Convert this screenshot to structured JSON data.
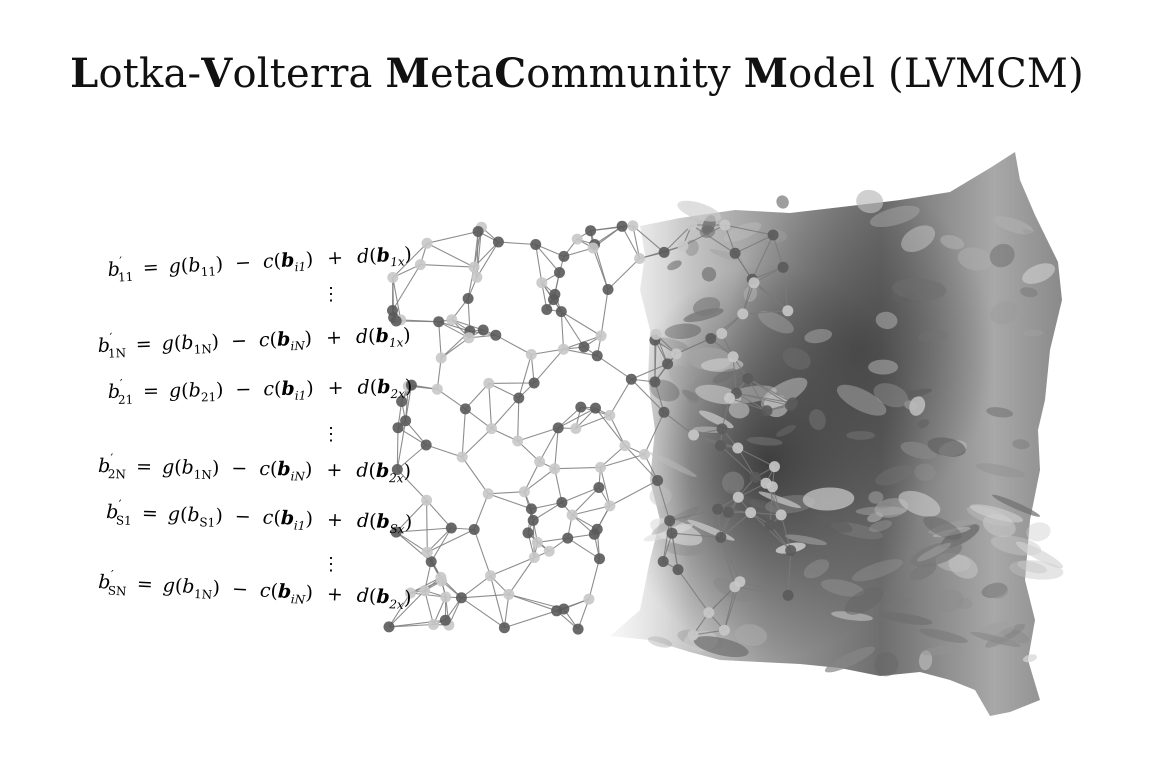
{
  "title": {
    "parts": [
      {
        "text": "L",
        "bold": true
      },
      {
        "text": "otka-",
        "bold": false
      },
      {
        "text": "V",
        "bold": true
      },
      {
        "text": "olterra ",
        "bold": false
      },
      {
        "text": "M",
        "bold": true
      },
      {
        "text": "eta",
        "bold": false
      },
      {
        "text": "C",
        "bold": true
      },
      {
        "text": "ommunity ",
        "bold": false
      },
      {
        "text": "M",
        "bold": true
      },
      {
        "text": "odel (LVMCM)",
        "bold": false
      }
    ]
  },
  "equations": [
    {
      "lhs_base": "b",
      "lhs_sub": "11",
      "g_arg": "b",
      "g_sub": "11",
      "c_sub": "i1",
      "d_sub": "1x"
    },
    {
      "lhs_base": "b",
      "lhs_sub": "1N",
      "g_arg": "b",
      "g_sub": "1N",
      "c_sub": "iN",
      "d_sub": "1x"
    },
    {
      "lhs_base": "b",
      "lhs_sub": "21",
      "g_arg": "b",
      "g_sub": "21",
      "c_sub": "i1",
      "d_sub": "2x"
    },
    {
      "lhs_base": "b",
      "lhs_sub": "2N",
      "g_arg": "b",
      "g_sub": "1N",
      "c_sub": "iN",
      "d_sub": "2x"
    },
    {
      "lhs_base": "b",
      "lhs_sub": "S1",
      "g_arg": "b",
      "g_sub": "S1",
      "c_sub": "i1",
      "d_sub": "Sx"
    },
    {
      "lhs_base": "b",
      "lhs_sub": "SN",
      "g_arg": "b",
      "g_sub": "1N",
      "c_sub": "iN",
      "d_sub": "2x"
    }
  ],
  "symbols": {
    "prime": "′",
    "equals": "=",
    "minus": "−",
    "plus": "+",
    "g": "g",
    "c": "c",
    "d": "d",
    "bold_b": "b",
    "vdots": "⋮"
  },
  "colors": {
    "node_light": "#c8c8c8",
    "node_dark": "#5a5a5a",
    "edge": "#7a7a7a",
    "surface_light": "#e4e4e4",
    "surface_dark": "#3c3c3c"
  }
}
